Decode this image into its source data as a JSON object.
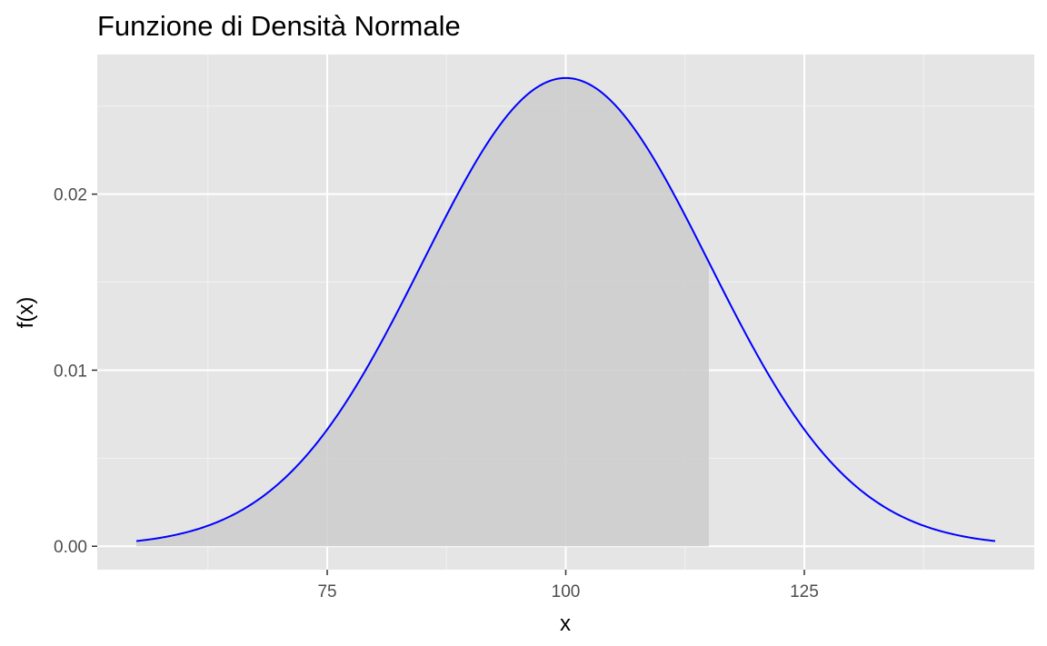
{
  "chart_data": {
    "type": "area",
    "title": "Funzione di Densità Normale",
    "xlabel": "x",
    "ylabel": "f(x)",
    "distribution": {
      "family": "normal",
      "mean": 100,
      "sd": 15
    },
    "x_range": [
      55,
      145
    ],
    "xlim": [
      50.9,
      149.1
    ],
    "ylim": [
      -0.00133,
      0.02793
    ],
    "x_ticks": [
      75,
      100,
      125
    ],
    "x_tick_labels": [
      "75",
      "100",
      "125"
    ],
    "x_minor_ticks": [
      62.5,
      87.5,
      112.5,
      137.5
    ],
    "y_ticks": [
      0.0,
      0.01,
      0.02
    ],
    "y_tick_labels": [
      "0.00",
      "0.01",
      "0.02"
    ],
    "y_minor_ticks": [
      0.005,
      0.015,
      0.025
    ],
    "shaded_region": {
      "from": 55,
      "to": 115
    },
    "grid": true,
    "colors": {
      "panel_background": "#e5e5e5",
      "grid_major": "#ffffff",
      "grid_minor": "#f2f2f2",
      "curve": "#0000ff",
      "shaded_fill": "#cccccc"
    }
  }
}
